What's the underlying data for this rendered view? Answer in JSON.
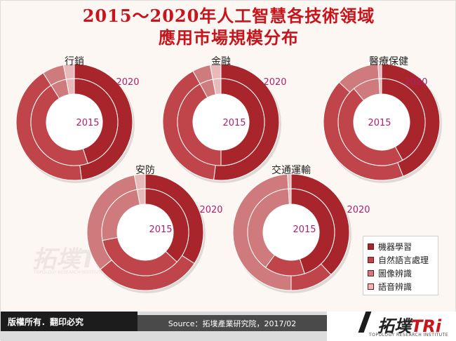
{
  "title": {
    "line1": "2015～2020年人工智慧各技術領域",
    "line2": "應用市場規模分布"
  },
  "chart_data": {
    "type": "donut",
    "outer_ring": "2020",
    "inner_ring": "2015",
    "categories": [
      "機器學習",
      "自然語言處理",
      "圖像辨識",
      "語音辨識"
    ],
    "colors": [
      "#a8252b",
      "#c0454a",
      "#cf7a7d",
      "#e9b8b9"
    ],
    "charts": [
      {
        "name": "行銷",
        "label_2020": "2020",
        "label_2015": "2015",
        "values_2020": [
          48,
          43,
          6,
          3
        ],
        "values_2015": [
          45,
          46,
          6,
          3
        ]
      },
      {
        "name": "金融",
        "label_2020": "2020",
        "label_2015": "2015",
        "values_2020": [
          52,
          40,
          5,
          3
        ],
        "values_2015": [
          50,
          42,
          5,
          3
        ]
      },
      {
        "name": "醫療保健",
        "label_2020": "2020",
        "label_2015": "2015",
        "values_2020": [
          44,
          43,
          12,
          1
        ],
        "values_2015": [
          42,
          47,
          10,
          1
        ]
      },
      {
        "name": "安防",
        "label_2020": "2020",
        "label_2015": "2015",
        "values_2020": [
          34,
          30,
          33,
          3
        ],
        "values_2015": [
          37,
          35,
          25,
          3
        ]
      },
      {
        "name": "交通運輸",
        "label_2020": "2020",
        "label_2015": "2015",
        "values_2020": [
          38,
          12,
          49,
          1
        ],
        "values_2015": [
          45,
          15,
          39,
          1
        ]
      }
    ]
  },
  "legend": [
    "機器學習",
    "自然語言處理",
    "圖像辨識",
    "語音辨識"
  ],
  "footer": {
    "copyright": "版權所有．翻印必究",
    "source": "Source：拓墣產業研究院，2017/02",
    "logo_main": "拓墣",
    "logo_accent": "TRi",
    "logo_sub": "TOPOLOGY RESEARCH INSTITUTE"
  },
  "watermark": {
    "text": "拓墣TRi",
    "sub": "TOPOLOGY RESEARCH INSTITUTE"
  }
}
